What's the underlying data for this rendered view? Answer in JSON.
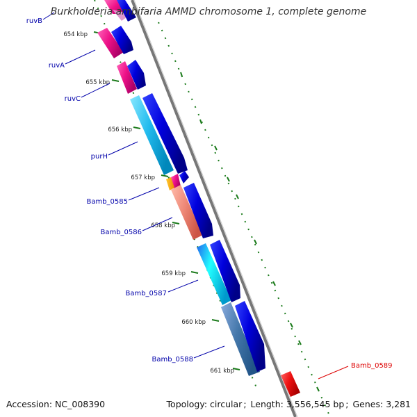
{
  "header": {
    "title": "Burkholderia ambifaria AMMD chromosome 1, complete genome"
  },
  "footer": {
    "accession_label": "Accession:",
    "accession": "NC_008390",
    "topology_label": "Topology:",
    "topology": "circular",
    "length_label": "Length:",
    "length": "3,556,545 bp",
    "genes_label": "Genes:",
    "genes": "3,281"
  },
  "ticks": [
    "654 kbp",
    "655 kbp",
    "656 kbp",
    "657 kbp",
    "658 kbp",
    "659 kbp",
    "660 kbp",
    "661 kbp"
  ],
  "genes": [
    "ruvB",
    "ruvA",
    "ruvC",
    "purH",
    "Bamb_0585",
    "Bamb_0586",
    "Bamb_0587",
    "Bamb_0588",
    "Bamb_0589"
  ],
  "colors": {
    "backbone": "#888888",
    "cds": "#0000dd",
    "tick": "#1a7a1a",
    "label_blue": "#0000aa",
    "label_red": "#dd0000",
    "ruv_pink": "#ee1188",
    "purH_cyan": "#22bbee",
    "b0586_salmon": "#ee8877",
    "b0588_steel": "#4477aa",
    "b0589_red": "#ee1111"
  }
}
